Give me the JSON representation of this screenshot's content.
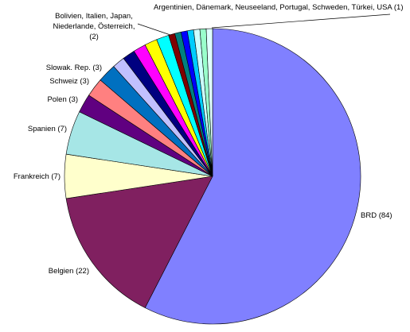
{
  "chart_data": {
    "type": "pie",
    "categories": [
      "BRD (84)",
      "Belgien (22)",
      "Frankreich (7)",
      "Spanien (7)",
      "Polen (3)",
      "Schweiz (3)",
      "Slowak. Rep. (3)",
      "Bolivien, Italien, Japan,\nNiederlande, Österreich,\n(2)",
      null,
      null,
      null,
      null,
      "Argentinien, Dänemark, Neuseeland, Portugal, Schweden, Türkei, USA (1)",
      null,
      null,
      null,
      null,
      null,
      null
    ],
    "values": [
      84,
      22,
      7,
      7,
      3,
      3,
      3,
      2,
      2,
      2,
      2,
      2,
      1,
      1,
      1,
      1,
      1,
      1,
      1
    ],
    "colors": [
      "#8080ff",
      "#802060",
      "#ffffcc",
      "#a6e6e6",
      "#600080",
      "#ff8080",
      "#0070c0",
      "#c0c0ff",
      "#000080",
      "#ff00ff",
      "#ffff00",
      "#00ffff",
      "#800000",
      "#008080",
      "#0000ff",
      "#00ccff",
      "#ccffff",
      "#99ffcc",
      "#e0ffff"
    ]
  }
}
